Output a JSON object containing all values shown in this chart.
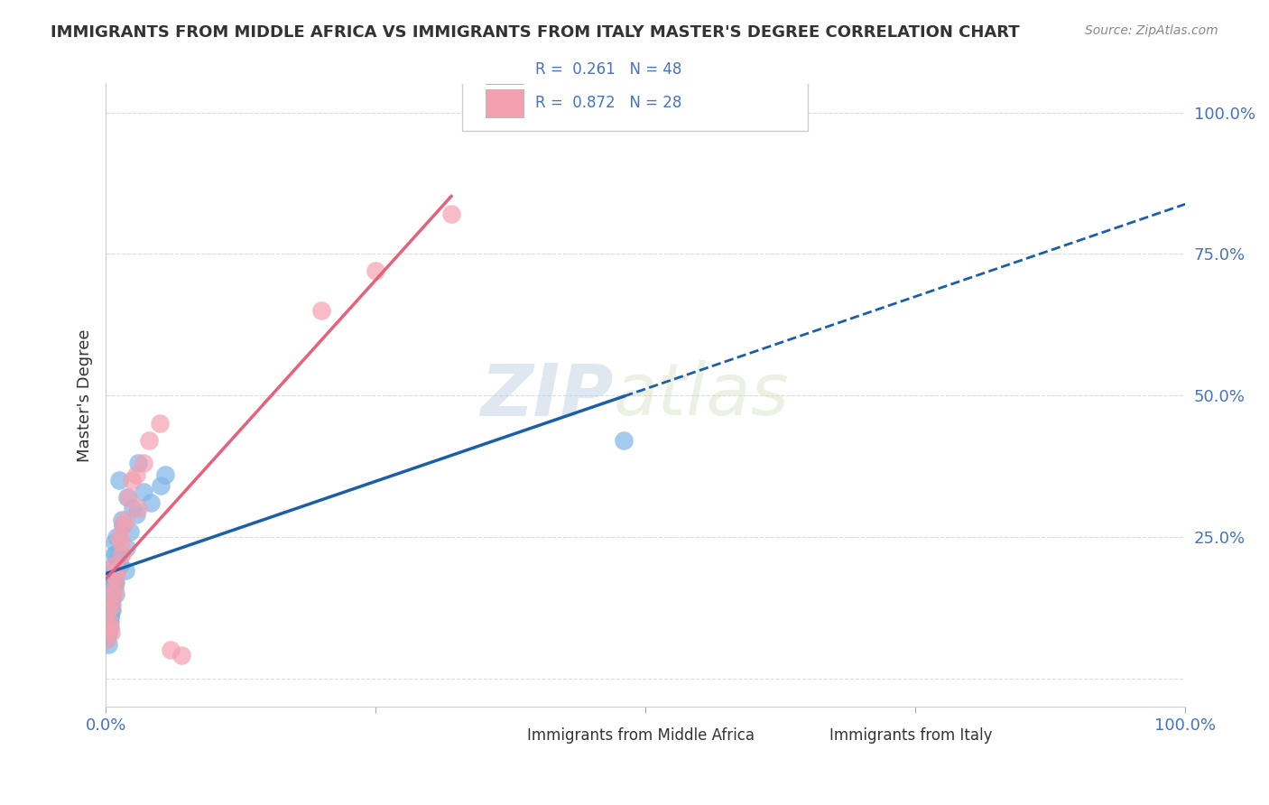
{
  "title": "IMMIGRANTS FROM MIDDLE AFRICA VS IMMIGRANTS FROM ITALY MASTER'S DEGREE CORRELATION CHART",
  "source": "Source: ZipAtlas.com",
  "xlabel": "",
  "ylabel": "Master's Degree",
  "xlim": [
    0,
    1.0
  ],
  "ylim": [
    -0.05,
    1.05
  ],
  "blue_R": 0.261,
  "blue_N": 48,
  "pink_R": 0.872,
  "pink_N": 28,
  "blue_color": "#7EB6E8",
  "pink_color": "#F4A0B0",
  "blue_line_color": "#1A5FA8",
  "pink_line_color": "#E8607A",
  "legend_blue_label": "Immigrants from Middle Africa",
  "legend_pink_label": "Immigrants from Italy",
  "watermark_zip": "ZIP",
  "watermark_atlas": "atlas",
  "background_color": "#FFFFFF",
  "grid_color": "#CCCCCC",
  "blue_x": [
    0.005,
    0.008,
    0.003,
    0.002,
    0.01,
    0.006,
    0.004,
    0.007,
    0.009,
    0.003,
    0.015,
    0.012,
    0.018,
    0.005,
    0.02,
    0.003,
    0.006,
    0.011,
    0.008,
    0.004,
    0.025,
    0.03,
    0.022,
    0.014,
    0.001,
    0.002,
    0.007,
    0.009,
    0.005,
    0.016,
    0.035,
    0.028,
    0.019,
    0.013,
    0.042,
    0.051,
    0.003,
    0.006,
    0.01,
    0.008,
    0.055,
    0.48,
    0.002,
    0.004,
    0.007,
    0.009,
    0.003,
    0.005
  ],
  "blue_y": [
    0.18,
    0.22,
    0.15,
    0.08,
    0.25,
    0.12,
    0.1,
    0.2,
    0.17,
    0.13,
    0.28,
    0.35,
    0.19,
    0.14,
    0.32,
    0.09,
    0.16,
    0.21,
    0.24,
    0.11,
    0.3,
    0.38,
    0.26,
    0.22,
    0.07,
    0.06,
    0.18,
    0.15,
    0.13,
    0.27,
    0.33,
    0.29,
    0.23,
    0.2,
    0.31,
    0.34,
    0.1,
    0.14,
    0.19,
    0.17,
    0.36,
    0.42,
    0.08,
    0.11,
    0.16,
    0.22,
    0.09,
    0.12
  ],
  "pink_x": [
    0.003,
    0.007,
    0.005,
    0.002,
    0.009,
    0.004,
    0.006,
    0.008,
    0.001,
    0.012,
    0.015,
    0.018,
    0.021,
    0.024,
    0.03,
    0.035,
    0.04,
    0.05,
    0.028,
    0.016,
    0.014,
    0.01,
    0.008,
    0.25,
    0.2,
    0.32,
    0.06,
    0.07
  ],
  "pink_y": [
    0.1,
    0.15,
    0.08,
    0.12,
    0.18,
    0.09,
    0.13,
    0.2,
    0.07,
    0.25,
    0.22,
    0.28,
    0.32,
    0.35,
    0.3,
    0.38,
    0.42,
    0.45,
    0.36,
    0.27,
    0.24,
    0.19,
    0.16,
    0.72,
    0.65,
    0.82,
    0.05,
    0.04
  ]
}
